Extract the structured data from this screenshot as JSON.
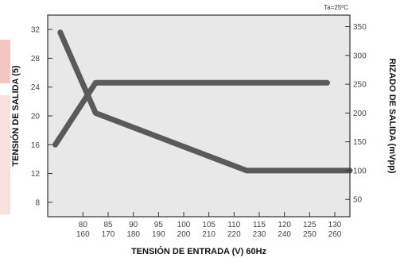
{
  "colors": {
    "plot_bg": "#e8e8e8",
    "frame": "#333333",
    "curve": "#5a5a5a",
    "brand": "#f3c7c0"
  },
  "chart_data": {
    "type": "line",
    "title": "",
    "note": "Ta=25ºC",
    "xlabel": "TENSIÓN DE ENTRADA (V) 60Hz",
    "ylabel": "TENSIÓN DE SALIDA (5)",
    "y2label": "RIZADO DE SALIDA (mVpp)",
    "x_ticks_top": [
      "80",
      "85",
      "90",
      "95",
      "100",
      "105",
      "110",
      "115",
      "120",
      "125",
      "130"
    ],
    "x_ticks_bottom": [
      "160",
      "170",
      "180",
      "190",
      "200",
      "210",
      "220",
      "230",
      "240",
      "250",
      "260"
    ],
    "xlim": [
      73,
      133
    ],
    "ylim": [
      6,
      34
    ],
    "yticks": [
      8,
      12,
      16,
      20,
      24,
      28,
      32
    ],
    "y2lim": [
      20,
      370
    ],
    "y2ticks": [
      50,
      100,
      150,
      200,
      250,
      300,
      350
    ],
    "grid": false,
    "series": [
      {
        "axis": "left",
        "x": [
          74.5,
          82.5,
          128.5
        ],
        "y": [
          16,
          24.6,
          24.6
        ]
      },
      {
        "axis": "right",
        "x": [
          75.5,
          82.5,
          112.5,
          133
        ],
        "y": [
          340,
          200,
          100,
          100
        ]
      }
    ]
  }
}
